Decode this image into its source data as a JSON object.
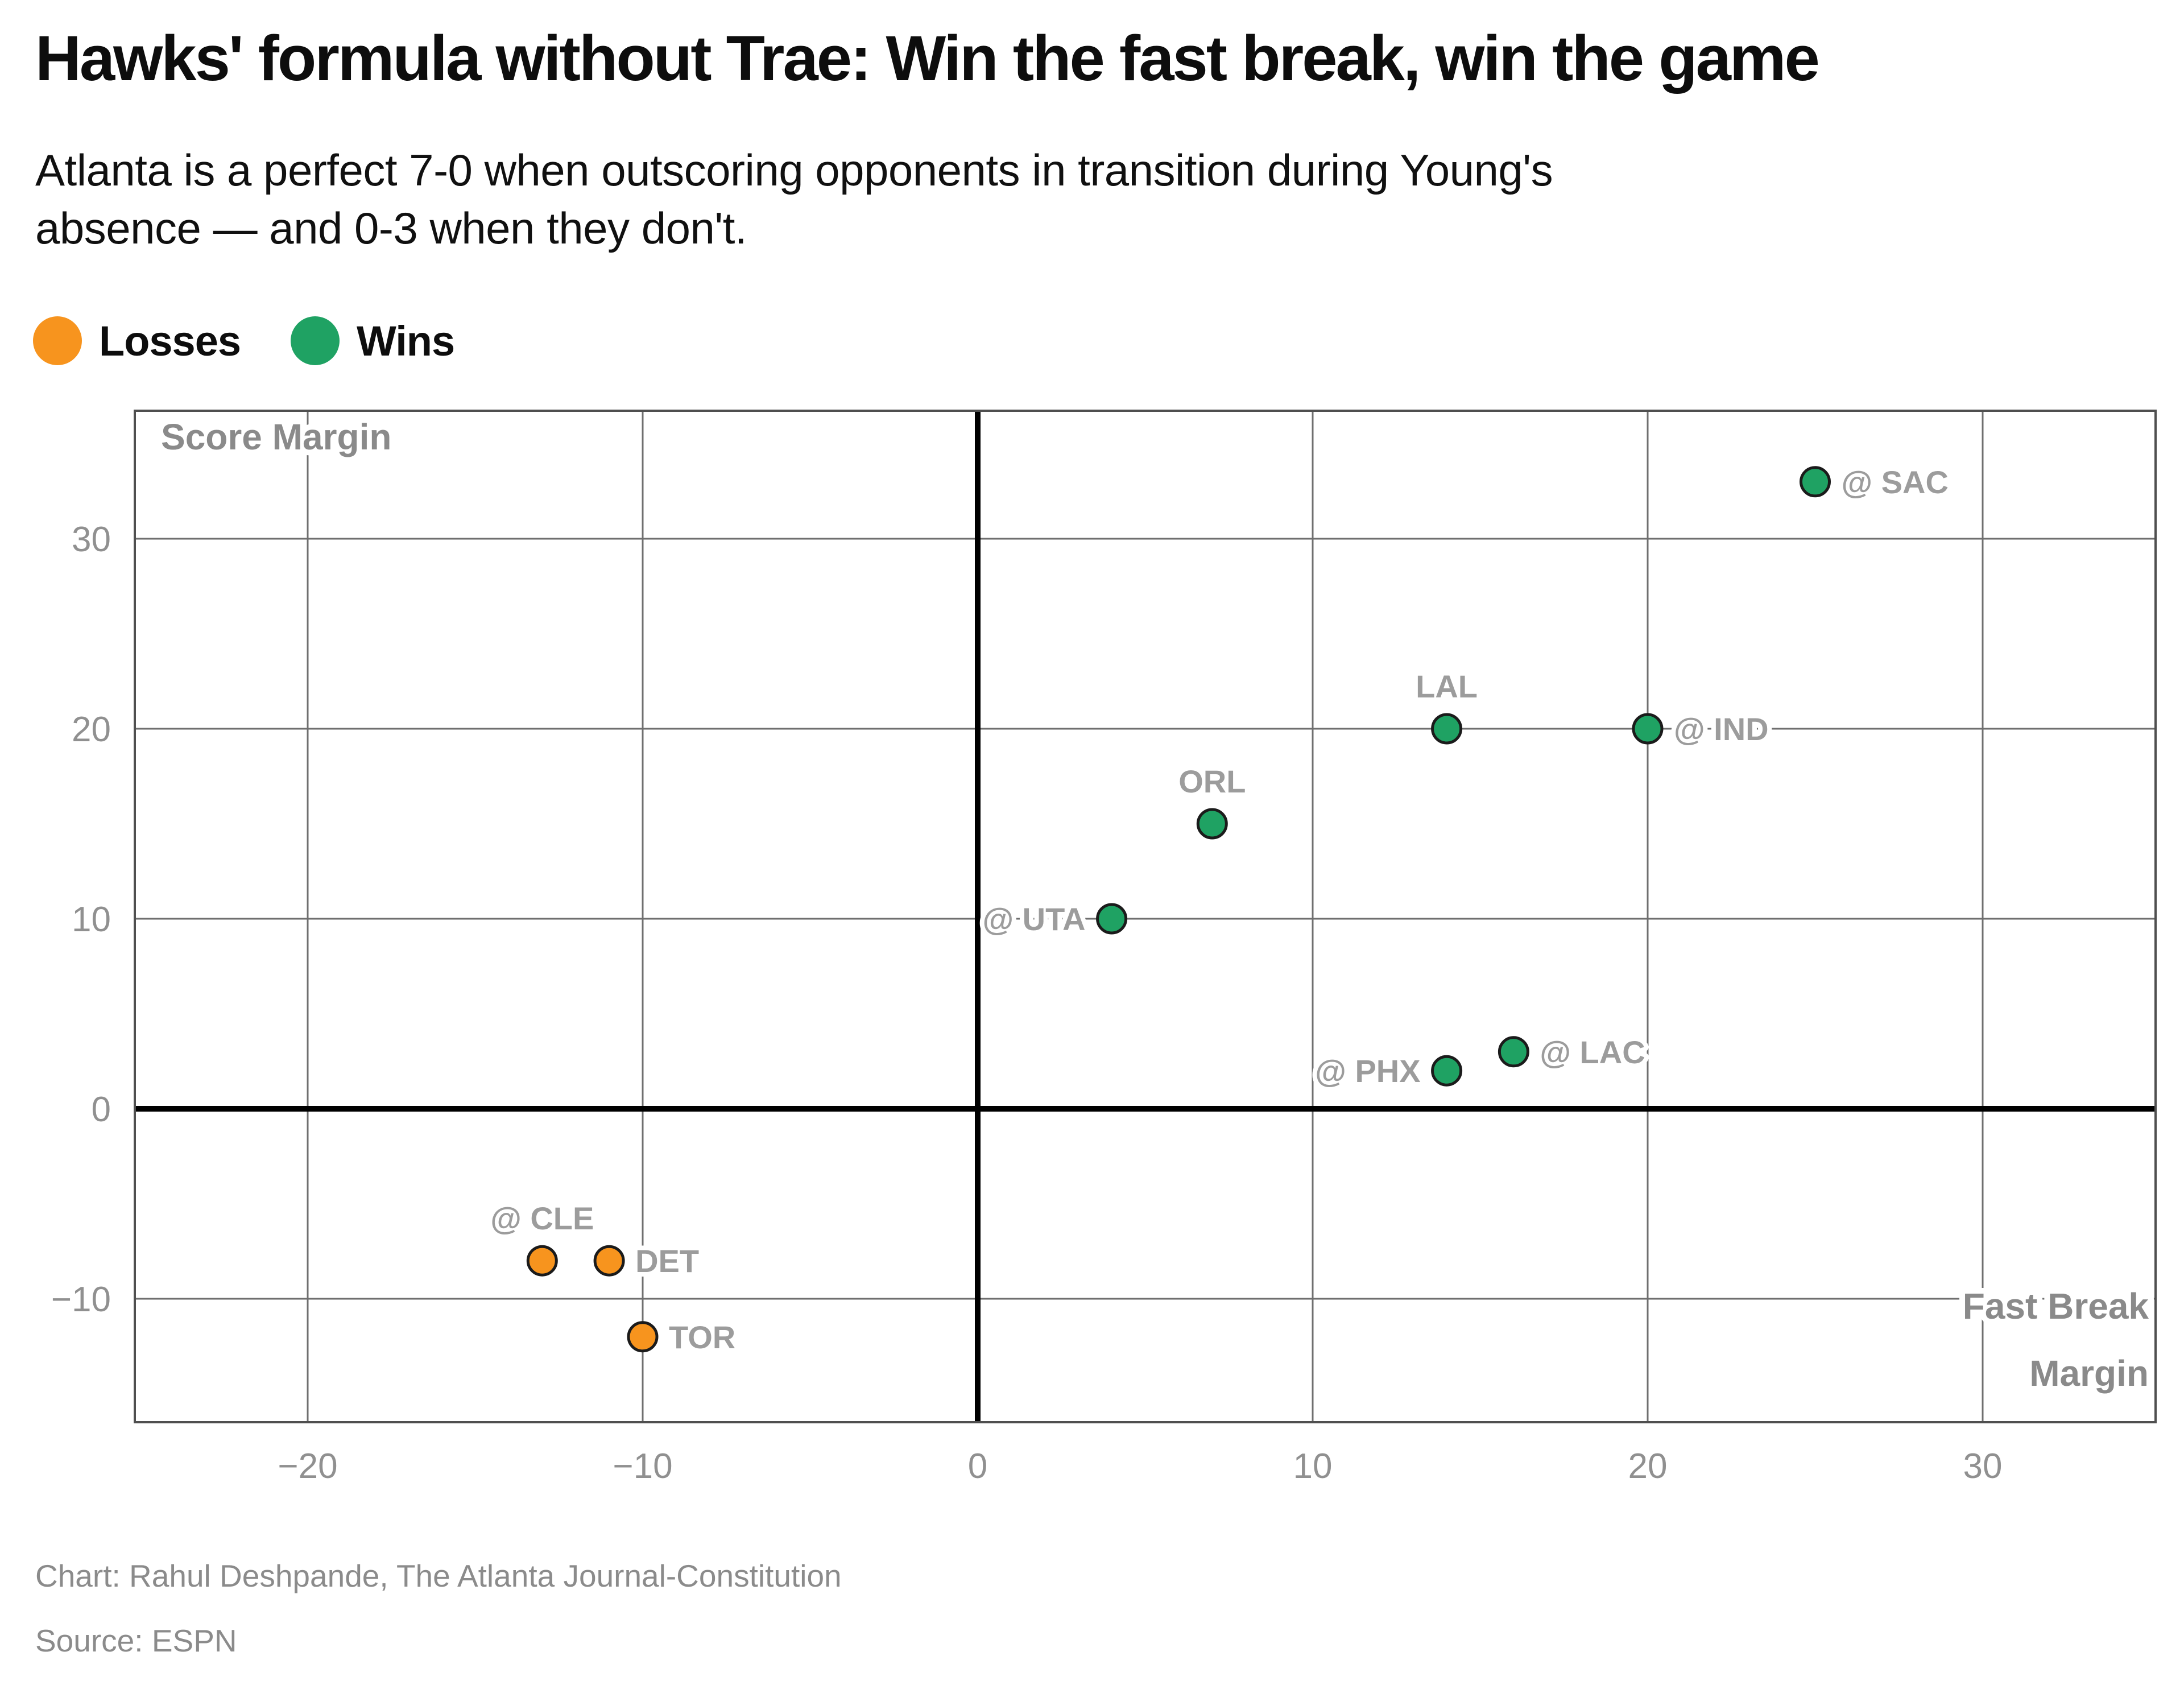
{
  "header": {
    "title": "Hawks' formula without Trae: Win the fast break, win the game",
    "subtitle_lines": [
      "Atlanta is a perfect 7-0 when outscoring opponents in transition during Young's",
      "absence — and 0-3 when they don't."
    ]
  },
  "legend": {
    "items": [
      {
        "label": "Losses",
        "color": "#f7941e"
      },
      {
        "label": "Wins",
        "color": "#1fa263"
      }
    ]
  },
  "chart_data": {
    "type": "scatter",
    "title": "Hawks' formula without Trae: Win the fast break, win the game",
    "xlabel": "Fast Break Margin",
    "ylabel": "Score Margin",
    "axis_title_x_lines": [
      "Fast Break",
      "Margin"
    ],
    "axis_title_y": "Score Margin",
    "x_ticks": [
      -20,
      -10,
      0,
      10,
      20,
      30
    ],
    "y_ticks": [
      30,
      20,
      10,
      0,
      -10
    ],
    "xlim": [
      -25.2,
      35.2
    ],
    "ylim": [
      -16.5,
      36.7
    ],
    "grid": true,
    "zero_lines": true,
    "colors": {
      "wins": "#1fa263",
      "losses": "#f7941e",
      "dot_stroke": "#1b1b1b",
      "gridline": "#6f6f6f",
      "zero_line": "#000000",
      "border": "#4f4f4f",
      "tick_label": "#909090",
      "point_label": "#9c9c9c",
      "axis_title": "#8a8a8a"
    },
    "series": [
      {
        "name": "Wins",
        "color": "#1fa263",
        "points": [
          {
            "label": "@ SAC",
            "x": 25,
            "y": 33,
            "label_side": "right"
          },
          {
            "label": "LAL",
            "x": 14,
            "y": 20,
            "label_side": "above"
          },
          {
            "label": "@ IND",
            "x": 20,
            "y": 20,
            "label_side": "right"
          },
          {
            "label": "ORL",
            "x": 7,
            "y": 15,
            "label_side": "above"
          },
          {
            "label": "@ UTA",
            "x": 4,
            "y": 10,
            "label_side": "left"
          },
          {
            "label": "@ LAC",
            "x": 16,
            "y": 3,
            "label_side": "right"
          },
          {
            "label": "@ PHX",
            "x": 14,
            "y": 2,
            "label_side": "left"
          }
        ]
      },
      {
        "name": "Losses",
        "color": "#f7941e",
        "points": [
          {
            "label": "@ CLE",
            "x": -13,
            "y": -8,
            "label_side": "above"
          },
          {
            "label": "DET",
            "x": -11,
            "y": -8,
            "label_side": "right"
          },
          {
            "label": "TOR",
            "x": -10,
            "y": -12,
            "label_side": "right"
          }
        ]
      }
    ]
  },
  "footer": {
    "credit": "Chart: Rahul Deshpande, The Atlanta Journal-Constitution",
    "source": "Source: ESPN"
  }
}
